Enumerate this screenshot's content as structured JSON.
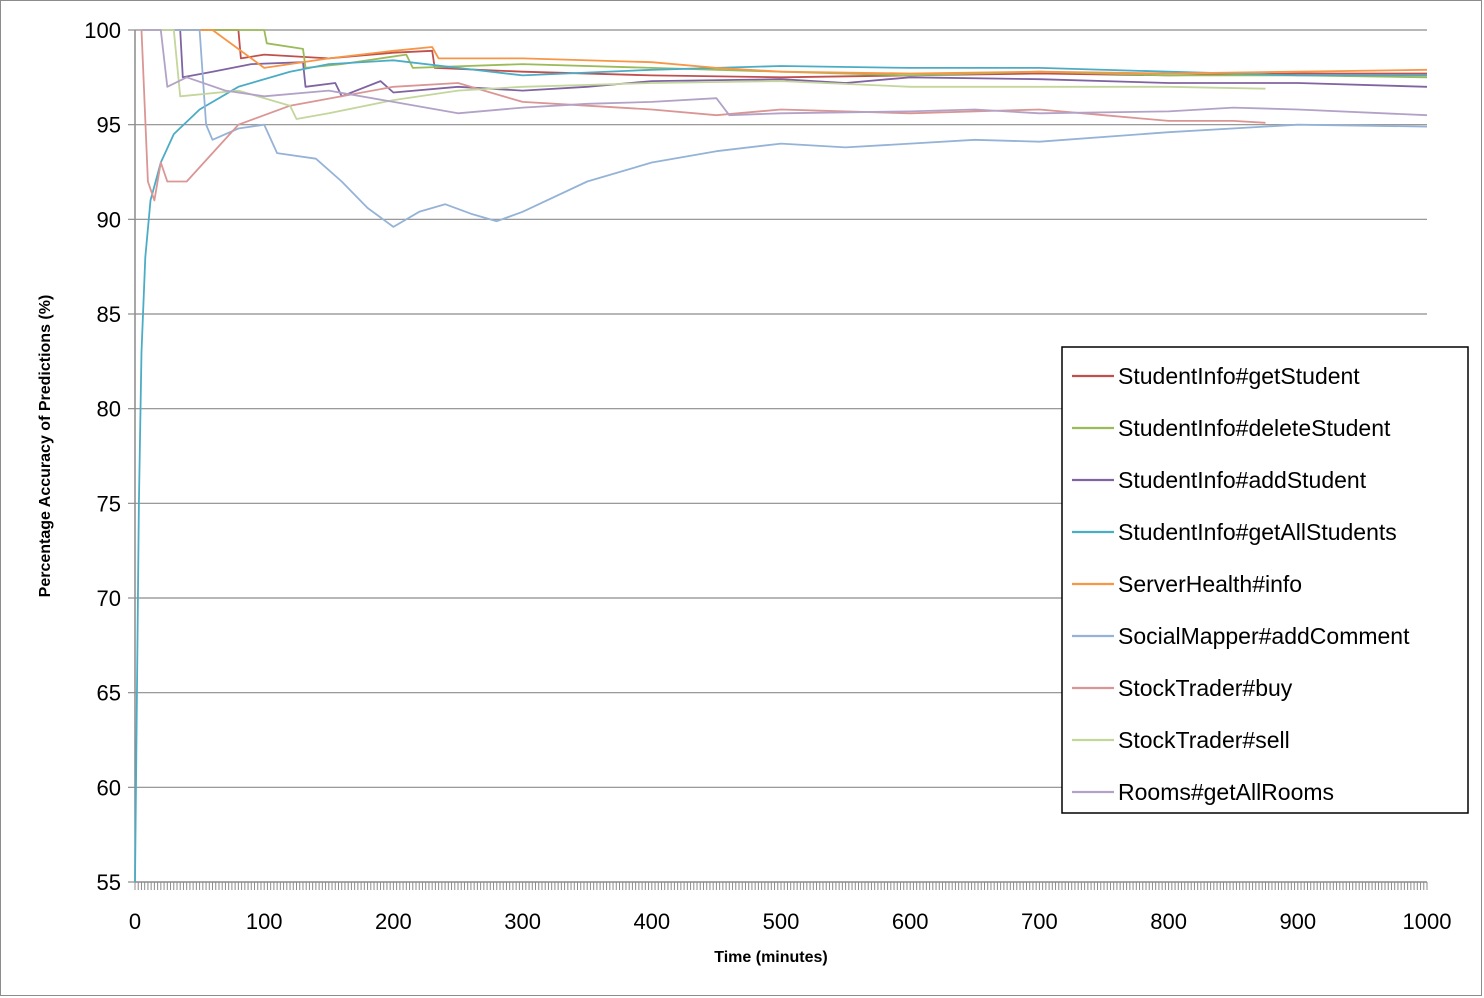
{
  "chart_data": {
    "type": "line",
    "title": "",
    "xlabel": "Time (minutes)",
    "ylabel": "Percentage Accuracy of Predictions (%)",
    "xlim": [
      0,
      1000
    ],
    "ylim": [
      55,
      100
    ],
    "x_ticks": [
      "0",
      "100",
      "200",
      "300",
      "400",
      "500",
      "600",
      "700",
      "800",
      "900",
      "1000"
    ],
    "y_ticks": [
      "100",
      "95",
      "90",
      "85",
      "80",
      "75",
      "70",
      "65",
      "60",
      "55"
    ],
    "grid": "horizontal",
    "legend_position": "right",
    "series": [
      {
        "name": "StudentInfo#getStudent",
        "color": "#c0504d",
        "points": [
          [
            5,
            100
          ],
          [
            80,
            100
          ],
          [
            82,
            98.5
          ],
          [
            100,
            98.7
          ],
          [
            150,
            98.5
          ],
          [
            200,
            98.8
          ],
          [
            230,
            98.9
          ],
          [
            232,
            98.0
          ],
          [
            300,
            97.8
          ],
          [
            400,
            97.6
          ],
          [
            500,
            97.5
          ],
          [
            600,
            97.6
          ],
          [
            700,
            97.7
          ],
          [
            800,
            97.6
          ],
          [
            900,
            97.7
          ],
          [
            1000,
            97.7
          ]
        ]
      },
      {
        "name": "StudentInfo#deleteStudent",
        "color": "#9bbb59",
        "points": [
          [
            5,
            100
          ],
          [
            100,
            100
          ],
          [
            102,
            99.3
          ],
          [
            130,
            99.0
          ],
          [
            132,
            98.0
          ],
          [
            160,
            98.2
          ],
          [
            210,
            98.7
          ],
          [
            215,
            98.0
          ],
          [
            300,
            98.2
          ],
          [
            400,
            98.0
          ],
          [
            500,
            97.8
          ],
          [
            600,
            97.6
          ],
          [
            700,
            97.8
          ],
          [
            800,
            97.6
          ],
          [
            900,
            97.6
          ],
          [
            1000,
            97.5
          ]
        ]
      },
      {
        "name": "StudentInfo#addStudent",
        "color": "#8064a2",
        "points": [
          [
            5,
            100
          ],
          [
            35,
            100
          ],
          [
            37,
            97.5
          ],
          [
            60,
            97.8
          ],
          [
            90,
            98.2
          ],
          [
            130,
            98.3
          ],
          [
            132,
            97.0
          ],
          [
            155,
            97.2
          ],
          [
            160,
            96.5
          ],
          [
            190,
            97.3
          ],
          [
            200,
            96.7
          ],
          [
            250,
            97.0
          ],
          [
            300,
            96.8
          ],
          [
            350,
            97.0
          ],
          [
            400,
            97.3
          ],
          [
            500,
            97.4
          ],
          [
            550,
            97.2
          ],
          [
            600,
            97.5
          ],
          [
            700,
            97.4
          ],
          [
            800,
            97.2
          ],
          [
            900,
            97.2
          ],
          [
            1000,
            97.0
          ]
        ]
      },
      {
        "name": "StudentInfo#getAllStudents",
        "color": "#4bacc6",
        "points": [
          [
            0,
            55
          ],
          [
            3,
            75
          ],
          [
            5,
            83
          ],
          [
            8,
            88
          ],
          [
            12,
            91
          ],
          [
            20,
            93
          ],
          [
            30,
            94.5
          ],
          [
            50,
            95.8
          ],
          [
            80,
            97
          ],
          [
            120,
            97.8
          ],
          [
            150,
            98.2
          ],
          [
            200,
            98.4
          ],
          [
            250,
            98.0
          ],
          [
            300,
            97.6
          ],
          [
            400,
            97.9
          ],
          [
            500,
            98.1
          ],
          [
            600,
            98.0
          ],
          [
            700,
            98.0
          ],
          [
            800,
            97.8
          ],
          [
            900,
            97.6
          ],
          [
            1000,
            97.6
          ]
        ]
      },
      {
        "name": "ServerHealth#info",
        "color": "#f79646",
        "points": [
          [
            5,
            100
          ],
          [
            60,
            100
          ],
          [
            100,
            98
          ],
          [
            150,
            98.5
          ],
          [
            200,
            98.9
          ],
          [
            230,
            99.1
          ],
          [
            235,
            98.5
          ],
          [
            300,
            98.5
          ],
          [
            400,
            98.3
          ],
          [
            450,
            98.0
          ],
          [
            500,
            97.8
          ],
          [
            600,
            97.7
          ],
          [
            700,
            97.8
          ],
          [
            800,
            97.7
          ],
          [
            900,
            97.8
          ],
          [
            1000,
            97.9
          ]
        ]
      },
      {
        "name": "SocialMapper#addComment",
        "color": "#95b3d7",
        "points": [
          [
            5,
            100
          ],
          [
            50,
            100
          ],
          [
            55,
            95
          ],
          [
            60,
            94.2
          ],
          [
            80,
            94.8
          ],
          [
            100,
            95.0
          ],
          [
            110,
            93.5
          ],
          [
            140,
            93.2
          ],
          [
            160,
            92.0
          ],
          [
            180,
            90.6
          ],
          [
            200,
            89.6
          ],
          [
            220,
            90.4
          ],
          [
            240,
            90.8
          ],
          [
            260,
            90.3
          ],
          [
            280,
            89.9
          ],
          [
            300,
            90.4
          ],
          [
            350,
            92.0
          ],
          [
            400,
            93.0
          ],
          [
            450,
            93.6
          ],
          [
            500,
            94.0
          ],
          [
            550,
            93.8
          ],
          [
            600,
            94.0
          ],
          [
            650,
            94.2
          ],
          [
            700,
            94.1
          ],
          [
            800,
            94.6
          ],
          [
            900,
            95.0
          ],
          [
            1000,
            94.9
          ]
        ]
      },
      {
        "name": "StockTrader#buy",
        "color": "#da9694",
        "points": [
          [
            5,
            100
          ],
          [
            10,
            92
          ],
          [
            15,
            91
          ],
          [
            20,
            93
          ],
          [
            25,
            92
          ],
          [
            40,
            92
          ],
          [
            60,
            93.5
          ],
          [
            80,
            95
          ],
          [
            120,
            96
          ],
          [
            160,
            96.5
          ],
          [
            200,
            97
          ],
          [
            250,
            97.2
          ],
          [
            300,
            96.2
          ],
          [
            350,
            96
          ],
          [
            400,
            95.8
          ],
          [
            450,
            95.5
          ],
          [
            500,
            95.8
          ],
          [
            600,
            95.6
          ],
          [
            700,
            95.8
          ],
          [
            750,
            95.5
          ],
          [
            800,
            95.2
          ],
          [
            850,
            95.2
          ],
          [
            875,
            95.1
          ]
        ]
      },
      {
        "name": "StockTrader#sell",
        "color": "#c3d69b",
        "points": [
          [
            5,
            100
          ],
          [
            30,
            100
          ],
          [
            35,
            96.5
          ],
          [
            80,
            96.8
          ],
          [
            120,
            96
          ],
          [
            125,
            95.3
          ],
          [
            150,
            95.6
          ],
          [
            200,
            96.3
          ],
          [
            250,
            96.8
          ],
          [
            300,
            97
          ],
          [
            400,
            97.2
          ],
          [
            500,
            97.3
          ],
          [
            600,
            97.0
          ],
          [
            700,
            97.0
          ],
          [
            800,
            97.0
          ],
          [
            875,
            96.9
          ]
        ]
      },
      {
        "name": "Rooms#getAllRooms",
        "color": "#b3a2c7",
        "points": [
          [
            5,
            100
          ],
          [
            20,
            100
          ],
          [
            25,
            97
          ],
          [
            40,
            97.5
          ],
          [
            70,
            96.8
          ],
          [
            100,
            96.5
          ],
          [
            150,
            96.8
          ],
          [
            200,
            96.2
          ],
          [
            250,
            95.6
          ],
          [
            300,
            95.9
          ],
          [
            350,
            96.1
          ],
          [
            400,
            96.2
          ],
          [
            450,
            96.4
          ],
          [
            460,
            95.5
          ],
          [
            500,
            95.6
          ],
          [
            600,
            95.7
          ],
          [
            650,
            95.8
          ],
          [
            700,
            95.6
          ],
          [
            800,
            95.7
          ],
          [
            850,
            95.9
          ],
          [
            900,
            95.8
          ],
          [
            1000,
            95.5
          ]
        ]
      }
    ]
  }
}
